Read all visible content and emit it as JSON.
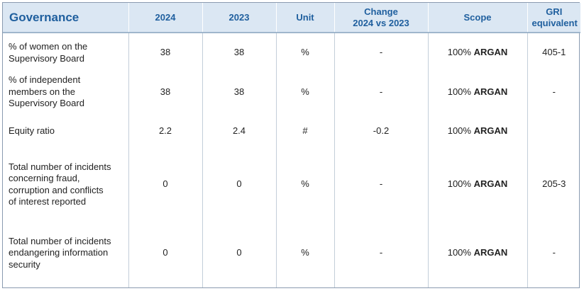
{
  "header": {
    "title": "Governance",
    "col_2024": "2024",
    "col_2023": "2023",
    "col_unit": "Unit",
    "col_change_line1": "Change",
    "col_change_line2": "2024 vs 2023",
    "col_scope": "Scope",
    "col_gri_line1": "GRI",
    "col_gri_line2": "equivalent"
  },
  "rows": [
    {
      "label_lines": [
        "% of women on the",
        "Supervisory Board"
      ],
      "v2024": "38",
      "v2023": "38",
      "unit": "%",
      "change": "-",
      "scope_pct": "100%",
      "scope_entity": "ARGAN",
      "gri": "405-1"
    },
    {
      "label_lines": [
        "% of independent",
        "members on the",
        "Supervisory Board"
      ],
      "v2024": "38",
      "v2023": "38",
      "unit": "%",
      "change": "-",
      "scope_pct": "100%",
      "scope_entity": "ARGAN",
      "gri": "-"
    },
    {
      "label_lines": [
        "Equity ratio"
      ],
      "v2024": "2.2",
      "v2023": "2.4",
      "unit": "#",
      "change": "-0.2",
      "scope_pct": "100%",
      "scope_entity": "ARGAN",
      "gri": ""
    },
    {
      "label_lines": [
        "Total number of incidents",
        "concerning fraud,",
        "corruption and conflicts",
        "of interest reported"
      ],
      "v2024": "0",
      "v2023": "0",
      "unit": "%",
      "change": "-",
      "scope_pct": "100%",
      "scope_entity": "ARGAN",
      "gri": "205-3"
    },
    {
      "label_lines": [
        "Total number of incidents",
        "endangering information",
        "security"
      ],
      "v2024": "0",
      "v2023": "0",
      "unit": "%",
      "change": "-",
      "scope_pct": "100%",
      "scope_entity": "ARGAN",
      "gri": "-"
    }
  ]
}
